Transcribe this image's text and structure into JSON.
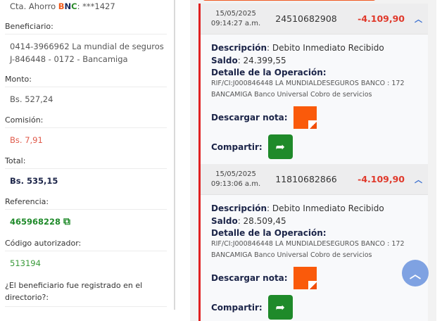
{
  "account": {
    "prefix": "Cta. Ahorro ",
    "brand_b": "B",
    "brand_n": "N",
    "brand_c": "C",
    "suffix": ": ***1427"
  },
  "fields": {
    "beneficiary_label": "Beneficiario:",
    "beneficiary_line1": "0414-3966962 La mundial de seguros",
    "beneficiary_line2": "J-846448 - 0172 - Bancamiga",
    "amount_label": "Monto:",
    "amount": "Bs. 527,24",
    "fee_label": "Comisión:",
    "fee": "Bs. 7,91",
    "total_label": "Total:",
    "total": "Bs. 535,15",
    "reference_label": "Referencia:",
    "reference": "465968228",
    "auth_label": "Código autorizador:",
    "auth": "513194",
    "directory_label": "¿El beneficiario fue registrado en el directorio?:"
  },
  "labels": {
    "description": "Descripción",
    "balance": "Saldo",
    "detail": "Detalle de la Operación:",
    "download": "Descargar nota:",
    "share": "Compartir:"
  },
  "transactions": [
    {
      "date": "15/05/2025",
      "time": "09:14:27 a.m.",
      "reference": "24510682908",
      "amount": "-4.109,90",
      "description": "Debito Inmediato Recibido",
      "balance": "24.399,55",
      "detail": "RIF/CI:J000846448 LA MUNDIALDESEGUROS BANCO : 172 BANCAMIGA Banco Universal Cobro de servicios"
    },
    {
      "date": "15/05/2025",
      "time": "09:13:06 a.m.",
      "reference": "11810682866",
      "amount": "-4.109,90",
      "description": "Debito Inmediato Recibido",
      "balance": "28.509,45",
      "detail": "RIF/CI:J000846448 LA MUNDIALDESEGUROS BANCO : 172 BANCAMIGA Banco Universal Cobro de servicios"
    }
  ],
  "colors": {
    "accent_red": "#e0392b",
    "orange": "#fa5a0a",
    "green": "#1f8a2a",
    "navy": "#1b2448"
  }
}
